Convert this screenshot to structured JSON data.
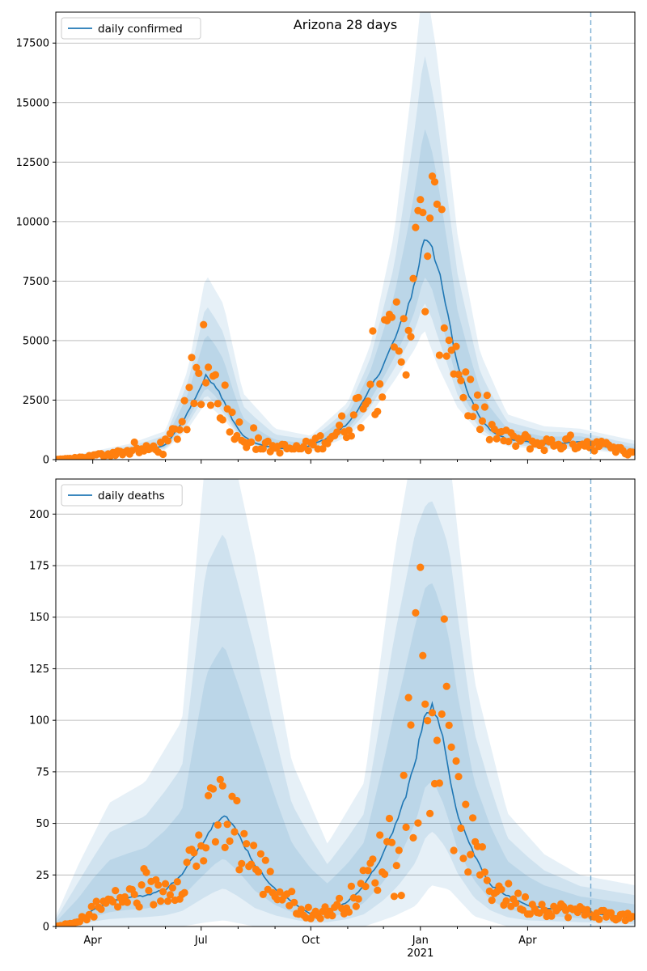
{
  "colors": {
    "model_line": "#1f77b4",
    "observed_points": "#ff7f0e",
    "band_fill": "#1f77b4",
    "grid": "#b0b0b0",
    "forecast_line": "#1f77b4"
  },
  "chart_data": [
    {
      "type": "line",
      "title": "Arizona 28 days",
      "legend": {
        "placement": "top-left",
        "entries": [
          "daily confirmed"
        ]
      },
      "grid": "horizontal",
      "ylim": [
        0,
        18800
      ],
      "yticks": [
        0,
        2500,
        5000,
        7500,
        10000,
        12500,
        15000,
        17500
      ],
      "xlim": [
        "2020-03-01",
        "2021-06-30"
      ],
      "forecast_start": "2021-05-24",
      "series": [
        {
          "name": "daily confirmed",
          "kind": "model",
          "x": [
            "2020-03-01",
            "2020-03-15",
            "2020-04-01",
            "2020-04-15",
            "2020-05-01",
            "2020-05-15",
            "2020-06-01",
            "2020-06-10",
            "2020-06-20",
            "2020-06-28",
            "2020-07-05",
            "2020-07-12",
            "2020-07-20",
            "2020-07-28",
            "2020-08-05",
            "2020-08-15",
            "2020-08-25",
            "2020-09-05",
            "2020-09-20",
            "2020-10-01",
            "2020-10-15",
            "2020-11-01",
            "2020-11-15",
            "2020-12-01",
            "2020-12-10",
            "2020-12-20",
            "2020-12-28",
            "2021-01-04",
            "2021-01-10",
            "2021-01-18",
            "2021-01-25",
            "2021-02-01",
            "2021-02-10",
            "2021-02-20",
            "2021-03-01",
            "2021-03-15",
            "2021-04-01",
            "2021-04-15",
            "2021-05-01",
            "2021-05-15",
            "2021-06-01",
            "2021-06-15",
            "2021-06-30"
          ],
          "y": [
            0,
            50,
            150,
            250,
            350,
            400,
            600,
            1200,
            2000,
            2800,
            3500,
            3200,
            2500,
            1600,
            1000,
            700,
            550,
            480,
            450,
            600,
            900,
            1500,
            2500,
            4000,
            5000,
            6200,
            7500,
            9300,
            9200,
            7500,
            5800,
            4000,
            2800,
            1800,
            1200,
            850,
            750,
            650,
            700,
            750,
            600,
            400,
            300
          ]
        }
      ],
      "bands": [
        {
          "x": [
            "2020-03-01",
            "2020-04-01",
            "2020-05-01",
            "2020-06-01",
            "2020-06-20",
            "2020-07-05",
            "2020-07-20",
            "2020-08-05",
            "2020-09-01",
            "2020-10-01",
            "2020-11-01",
            "2020-11-20",
            "2020-12-10",
            "2020-12-28",
            "2021-01-04",
            "2021-01-15",
            "2021-02-01",
            "2021-02-20",
            "2021-03-15",
            "2021-04-15",
            "2021-05-15",
            "2021-06-30"
          ],
          "low": [
            0,
            80,
            250,
            400,
            1300,
            2400,
            1700,
            700,
            320,
            330,
            950,
            1900,
            3300,
            4700,
            5500,
            4000,
            2200,
            1100,
            560,
            430,
            450,
            200
          ],
          "high": [
            40,
            350,
            650,
            1200,
            3800,
            7800,
            6500,
            2800,
            1300,
            1000,
            2400,
            4800,
            9500,
            17000,
            20500,
            17000,
            9500,
            4500,
            1900,
            1400,
            1300,
            800
          ]
        }
      ]
    },
    {
      "type": "line",
      "title": "",
      "legend": {
        "placement": "top-left",
        "entries": [
          "daily deaths"
        ]
      },
      "grid": "horizontal",
      "ylim": [
        0,
        217
      ],
      "yticks": [
        0,
        25,
        50,
        75,
        100,
        125,
        150,
        175,
        200
      ],
      "xlim": [
        "2020-03-01",
        "2021-06-30"
      ],
      "xticks": [
        "Apr",
        "Jul",
        "Oct",
        "Jan",
        "Apr"
      ],
      "xtick_subtitle": "2021",
      "forecast_start": "2021-05-24",
      "series": [
        {
          "name": "daily deaths",
          "kind": "model",
          "x": [
            "2020-03-01",
            "2020-03-20",
            "2020-04-01",
            "2020-04-15",
            "2020-05-01",
            "2020-05-15",
            "2020-06-01",
            "2020-06-15",
            "2020-07-01",
            "2020-07-12",
            "2020-07-20",
            "2020-08-01",
            "2020-08-15",
            "2020-09-01",
            "2020-09-20",
            "2020-10-01",
            "2020-10-15",
            "2020-11-01",
            "2020-11-15",
            "2020-12-01",
            "2020-12-15",
            "2020-12-28",
            "2021-01-05",
            "2021-01-12",
            "2021-01-20",
            "2021-02-01",
            "2021-02-15",
            "2021-03-01",
            "2021-03-15",
            "2021-04-01",
            "2021-04-15",
            "2021-05-01",
            "2021-05-15",
            "2021-06-01",
            "2021-06-15",
            "2021-06-30"
          ],
          "y": [
            0,
            2,
            8,
            12,
            14,
            15,
            18,
            25,
            40,
            50,
            55,
            45,
            30,
            18,
            10,
            6,
            7,
            12,
            20,
            35,
            55,
            80,
            105,
            107,
            90,
            55,
            35,
            20,
            15,
            10,
            9,
            8,
            7,
            6,
            5,
            4
          ]
        }
      ],
      "bands": [
        {
          "x": [
            "2020-03-01",
            "2020-03-20",
            "2020-04-15",
            "2020-05-15",
            "2020-06-15",
            "2020-07-05",
            "2020-07-20",
            "2020-08-15",
            "2020-09-15",
            "2020-10-15",
            "2020-11-15",
            "2020-12-10",
            "2020-12-28",
            "2021-01-10",
            "2021-01-25",
            "2021-02-15",
            "2021-03-15",
            "2021-04-15",
            "2021-05-15",
            "2021-06-30"
          ],
          "low": [
            0,
            0,
            0,
            0,
            0,
            2,
            3,
            0,
            0,
            0,
            0,
            5,
            10,
            20,
            18,
            5,
            0,
            0,
            0,
            0
          ],
          "high": [
            5,
            30,
            60,
            70,
            100,
            230,
            250,
            180,
            80,
            40,
            70,
            180,
            240,
            250,
            230,
            120,
            55,
            35,
            25,
            20
          ]
        }
      ]
    }
  ]
}
